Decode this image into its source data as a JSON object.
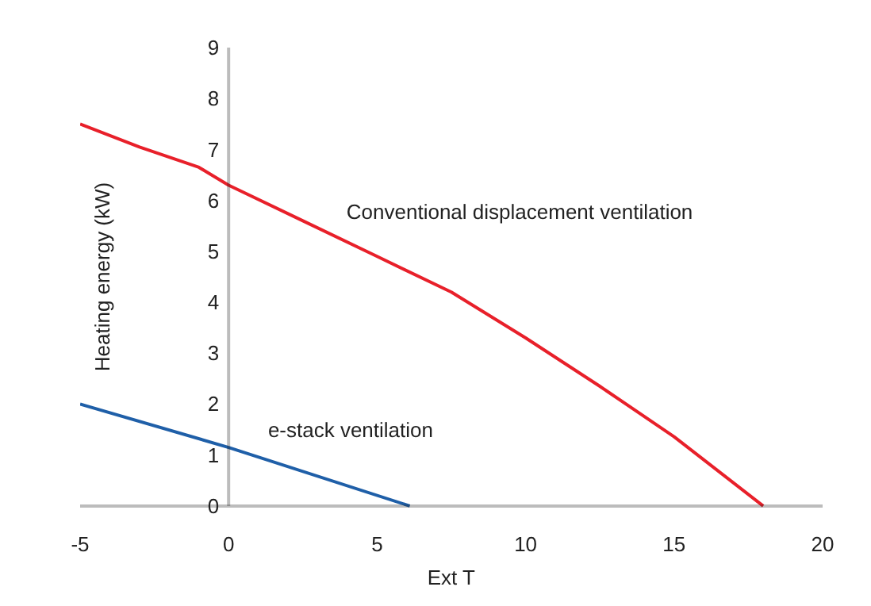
{
  "chart_data": {
    "type": "line",
    "xlabel": "Ext T",
    "ylabel": "Heating energy (kW)",
    "xlim": [
      -5,
      20
    ],
    "ylim": [
      0,
      9
    ],
    "xticks": [
      -5,
      0,
      5,
      10,
      15,
      20
    ],
    "yticks": [
      0,
      1,
      2,
      3,
      4,
      5,
      6,
      7,
      8,
      9
    ],
    "grid": false,
    "line_style": "solid",
    "series": [
      {
        "name": "Conventional displacement ventilation",
        "color": "#e8202a",
        "x": [
          -5,
          -3,
          -1,
          0,
          2.5,
          5,
          7.5,
          10,
          12.5,
          15,
          18
        ],
        "values": [
          7.5,
          7.05,
          6.65,
          6.3,
          5.6,
          4.9,
          4.2,
          3.3,
          2.35,
          1.36,
          0
        ]
      },
      {
        "name": "e-stack ventilation",
        "color": "#1f5fa8",
        "x": [
          -5,
          0,
          6.1
        ],
        "values": [
          2.0,
          1.15,
          0
        ]
      }
    ]
  }
}
